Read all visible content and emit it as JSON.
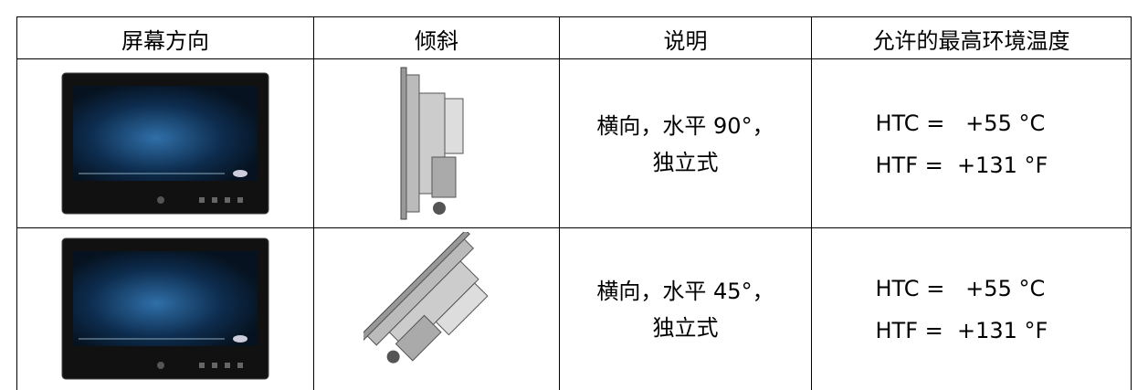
{
  "table": {
    "header": [
      "屏幕方向",
      "倾斜",
      "说明",
      "允许的最高环境温度"
    ],
    "rows": [
      {
        "description": [
          "横向，水平 90°，",
          "独立式"
        ],
        "temperature": [
          "HTC =   +55 °C",
          "HTF =  +131 °F"
        ]
      },
      {
        "description": [
          "横向，水平 45°，",
          "独立式"
        ],
        "temperature": [
          "HTC =   +55 °C",
          "HTF =  +131 °F"
        ]
      }
    ]
  }
}
